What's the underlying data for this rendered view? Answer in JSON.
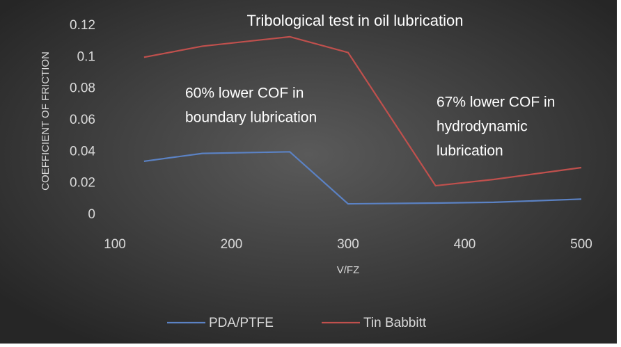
{
  "chart_data": {
    "type": "line",
    "title": "Tribological test in oil lubrication",
    "x_label": "V/FZ",
    "y_label": "COEFFICIENT OF FRICTION",
    "x": [
      125,
      175,
      250,
      300,
      375,
      425,
      500
    ],
    "series": [
      {
        "name": "PDA/PTFE",
        "color": "#5b82c4",
        "values": [
          0.034,
          0.039,
          0.04,
          0.007,
          0.0075,
          0.008,
          0.01
        ]
      },
      {
        "name": "Tin Babbitt",
        "color": "#c0504d",
        "values": [
          0.1,
          0.107,
          0.113,
          0.103,
          0.0185,
          0.0225,
          0.03
        ]
      }
    ],
    "xlim": [
      100,
      500
    ],
    "xticks": [
      100,
      200,
      300,
      400,
      500
    ],
    "ylim": [
      0,
      0.12
    ],
    "yticks": [
      0,
      0.02,
      0.04,
      0.06,
      0.08,
      0.1,
      0.12
    ],
    "grid": false,
    "legend": "bottom",
    "annotations": [
      {
        "lines": [
          "60% lower COF in",
          "boundary lubrication"
        ]
      },
      {
        "lines": [
          "67% lower COF in",
          "hydrodynamic",
          "lubrication"
        ]
      }
    ]
  }
}
